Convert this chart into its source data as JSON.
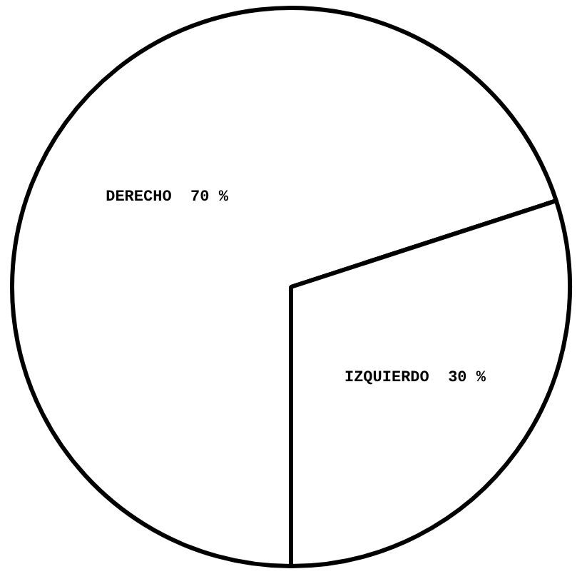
{
  "chart_data": {
    "type": "pie",
    "categories": [
      "DERECHO",
      "IZQUIERDO"
    ],
    "values": [
      70,
      30
    ],
    "value_labels": [
      "70 %",
      "30 %"
    ],
    "colors": [
      "#ffffff",
      "#ffffff"
    ],
    "legend": false
  }
}
